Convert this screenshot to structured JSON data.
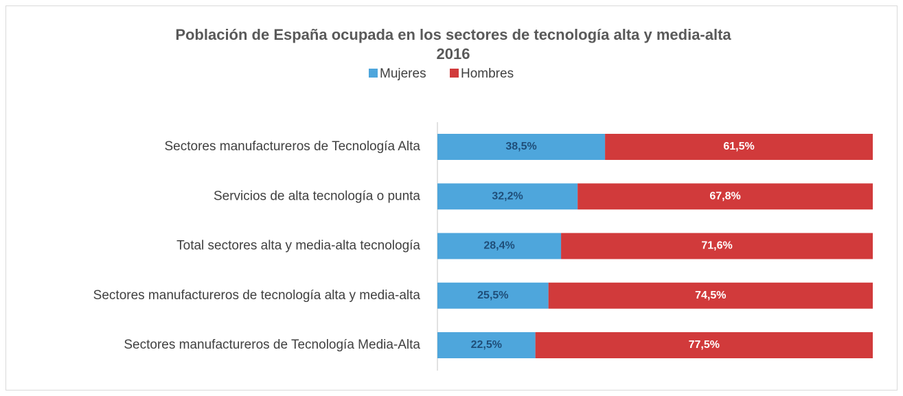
{
  "chart_data": {
    "type": "stacked-bar-horizontal",
    "title": "Población de España ocupada en los sectores de tecnología alta y media-alta",
    "subtitle": "2016",
    "categories": [
      "Sectores manufactureros de Tecnología Alta",
      "Servicios de alta tecnología o  punta",
      "Total sectores alta y media-alta tecnología",
      "Sectores manufactureros de tecnología alta y media-alta",
      "Sectores manufactureros de Tecnología Media-Alta"
    ],
    "series": [
      {
        "name": "Mujeres",
        "color": "#4ea6dc",
        "label_color": "#1f4e79",
        "values": [
          38.5,
          32.2,
          28.4,
          25.5,
          22.5
        ],
        "value_labels": [
          "38,5%",
          "32,2%",
          "28,4%",
          "25,5%",
          "22,5%"
        ]
      },
      {
        "name": "Hombres",
        "color": "#d13a3b",
        "label_color": "#ffffff",
        "values": [
          61.5,
          67.8,
          71.6,
          74.5,
          77.5
        ],
        "value_labels": [
          "61,5%",
          "67,8%",
          "71,6%",
          "74,5%",
          "77,5%"
        ]
      }
    ],
    "legend": "top"
  }
}
